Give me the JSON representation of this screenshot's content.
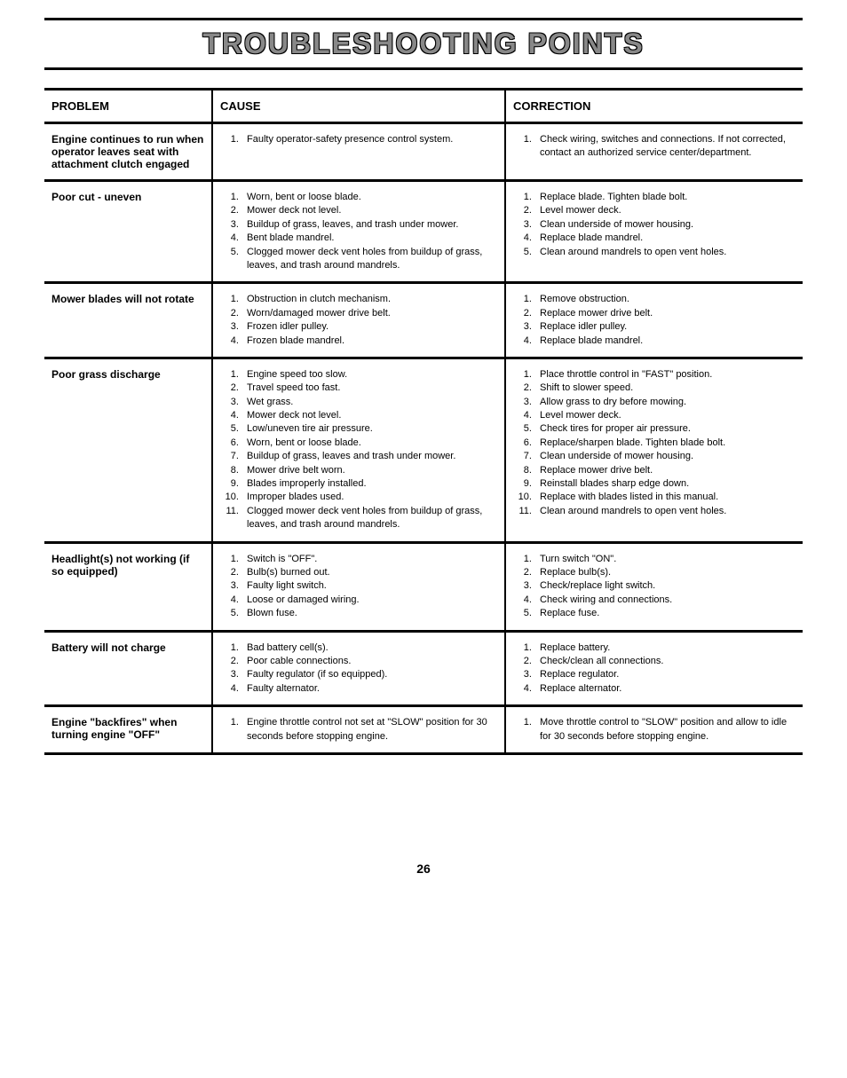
{
  "title": "TROUBLESHOOTING POINTS",
  "headers": {
    "problem": "PROBLEM",
    "cause": "CAUSE",
    "correction": "CORRECTION"
  },
  "rows": [
    {
      "problem": "Engine continues to run when operator leaves seat with attachment clutch engaged",
      "causes": [
        "Faulty operator-safety presence control system."
      ],
      "corrections": [
        "Check wiring, switches and connections. If not corrected, contact an authorized service center/department."
      ]
    },
    {
      "problem": "Poor cut - uneven",
      "causes": [
        "Worn, bent or loose blade.",
        "Mower deck not level.",
        "Buildup of grass, leaves, and trash under mower.",
        "Bent blade mandrel.",
        "Clogged mower deck vent holes from buildup of grass, leaves, and trash around mandrels."
      ],
      "corrections": [
        "Replace blade. Tighten blade bolt.",
        "Level mower deck.",
        "Clean underside of mower housing.",
        "Replace blade mandrel.",
        "Clean around mandrels to open vent holes."
      ]
    },
    {
      "problem": "Mower blades will not rotate",
      "causes": [
        "Obstruction in clutch mechanism.",
        "Worn/damaged mower drive belt.",
        "Frozen idler pulley.",
        "Frozen blade mandrel."
      ],
      "corrections": [
        "Remove obstruction.",
        "Replace mower drive belt.",
        "Replace idler pulley.",
        "Replace blade mandrel."
      ]
    },
    {
      "problem": "Poor grass discharge",
      "causes": [
        "Engine speed too slow.",
        "Travel speed too fast.",
        "Wet grass.",
        "Mower deck not level.",
        "Low/uneven tire air pressure.",
        "Worn, bent or loose blade.",
        "Buildup of grass, leaves and trash under mower.",
        "Mower drive belt worn.",
        "Blades improperly installed.",
        "Improper blades used.",
        "Clogged mower deck vent holes from buildup of grass, leaves, and trash around mandrels."
      ],
      "corrections": [
        "Place throttle control in \"FAST\" position.",
        "Shift to slower speed.",
        "Allow grass to dry before mowing.",
        "Level mower deck.",
        "Check tires for proper air pressure.",
        "Replace/sharpen blade. Tighten blade bolt.",
        "Clean underside of mower housing.",
        "Replace mower drive belt.",
        "Reinstall blades sharp edge down.",
        "Replace with blades listed in this manual.",
        "Clean around mandrels to open vent holes."
      ]
    },
    {
      "problem": "Headlight(s) not working (if so equipped)",
      "causes": [
        "Switch is \"OFF\".",
        "Bulb(s) burned out.",
        "Faulty light switch.",
        "Loose or damaged wiring.",
        "Blown fuse."
      ],
      "corrections": [
        "Turn switch \"ON\".",
        "Replace bulb(s).",
        "Check/replace light switch.",
        "Check wiring and connections.",
        "Replace fuse."
      ]
    },
    {
      "problem": "Battery will not charge",
      "causes": [
        "Bad battery cell(s).",
        "Poor cable connections.",
        "Faulty regulator (if so equipped).",
        "Faulty alternator."
      ],
      "corrections": [
        "Replace battery.",
        "Check/clean all connections.",
        "Replace regulator.",
        "Replace alternator."
      ]
    },
    {
      "problem": "Engine \"backfires\" when turning engine \"OFF\"",
      "causes": [
        "Engine throttle control not set at \"SLOW\" position for 30 seconds before stopping engine."
      ],
      "corrections": [
        "Move throttle control to \"SLOW\" position and allow to idle for 30 seconds before stopping engine."
      ]
    }
  ],
  "pageNumber": "26"
}
